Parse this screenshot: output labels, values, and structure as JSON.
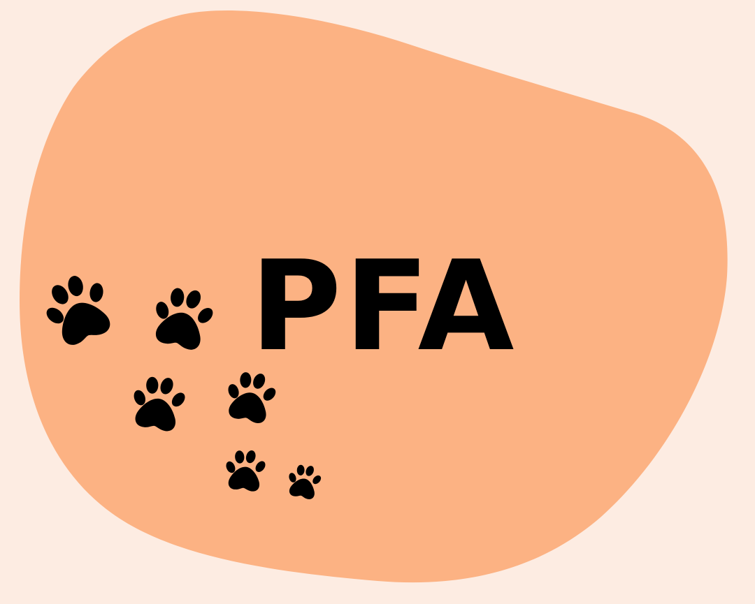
{
  "logo": {
    "text": "PFA",
    "icon": "paw-print-icon"
  },
  "colors": {
    "background": "#fdece2",
    "blob": "#fcb283",
    "ink": "#000000"
  }
}
